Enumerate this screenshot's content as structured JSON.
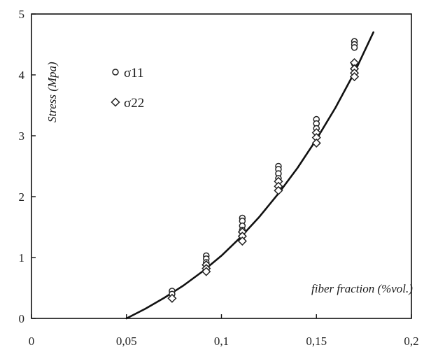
{
  "chart_data": {
    "type": "scatter",
    "title": "",
    "xlabel": "fiber fraction (%vol.)",
    "ylabel": "Stress (Mpa)",
    "xlim": [
      0,
      0.2
    ],
    "ylim": [
      0,
      5
    ],
    "x_ticks": [
      0,
      0.05,
      0.1,
      0.15,
      0.2
    ],
    "x_tick_labels": [
      "0",
      "0,05",
      "0,1",
      "0,15",
      "0,2"
    ],
    "y_ticks": [
      0,
      1,
      2,
      3,
      4,
      5
    ],
    "y_tick_labels": [
      "0",
      "1",
      "2",
      "3",
      "4",
      "5"
    ],
    "grid": false,
    "legend_position": "top-left",
    "series": [
      {
        "name": "σ11",
        "marker": "circle",
        "points": [
          [
            0.074,
            0.45
          ],
          [
            0.074,
            0.4
          ],
          [
            0.092,
            1.03
          ],
          [
            0.092,
            0.98
          ],
          [
            0.092,
            0.92
          ],
          [
            0.111,
            1.65
          ],
          [
            0.111,
            1.6
          ],
          [
            0.111,
            1.52
          ],
          [
            0.111,
            1.45
          ],
          [
            0.13,
            2.5
          ],
          [
            0.13,
            2.45
          ],
          [
            0.13,
            2.38
          ],
          [
            0.13,
            2.3
          ],
          [
            0.15,
            3.27
          ],
          [
            0.15,
            3.2
          ],
          [
            0.15,
            3.12
          ],
          [
            0.15,
            3.05
          ],
          [
            0.17,
            4.55
          ],
          [
            0.17,
            4.5
          ],
          [
            0.17,
            4.45
          ],
          [
            0.17,
            4.18
          ]
        ]
      },
      {
        "name": "σ22",
        "marker": "diamond",
        "points": [
          [
            0.074,
            0.33
          ],
          [
            0.092,
            0.88
          ],
          [
            0.092,
            0.82
          ],
          [
            0.092,
            0.77
          ],
          [
            0.111,
            1.42
          ],
          [
            0.111,
            1.35
          ],
          [
            0.111,
            1.27
          ],
          [
            0.13,
            2.25
          ],
          [
            0.13,
            2.17
          ],
          [
            0.13,
            2.1
          ],
          [
            0.15,
            3.05
          ],
          [
            0.15,
            2.97
          ],
          [
            0.15,
            2.88
          ],
          [
            0.17,
            4.2
          ],
          [
            0.17,
            4.1
          ],
          [
            0.17,
            4.03
          ],
          [
            0.17,
            3.97
          ]
        ]
      }
    ],
    "fit_curve": {
      "x": [
        0.05,
        0.06,
        0.07,
        0.08,
        0.09,
        0.1,
        0.11,
        0.12,
        0.13,
        0.14,
        0.15,
        0.16,
        0.17,
        0.18
      ],
      "y": [
        0.0,
        0.16,
        0.34,
        0.54,
        0.77,
        1.03,
        1.33,
        1.67,
        2.05,
        2.47,
        2.94,
        3.46,
        4.04,
        4.7
      ]
    }
  }
}
